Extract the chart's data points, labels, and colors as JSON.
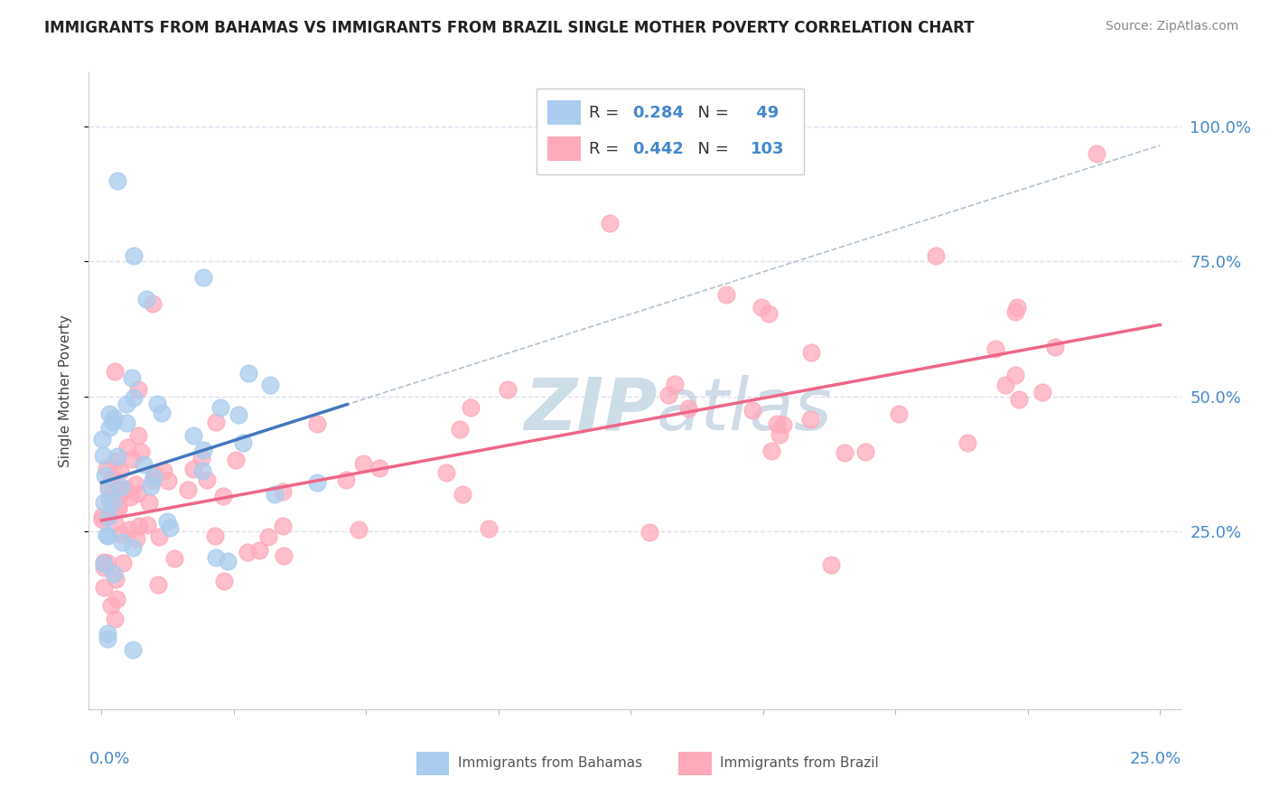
{
  "title": "IMMIGRANTS FROM BAHAMAS VS IMMIGRANTS FROM BRAZIL SINGLE MOTHER POVERTY CORRELATION CHART",
  "source": "Source: ZipAtlas.com",
  "legend_bahamas": "Immigrants from Bahamas",
  "legend_brazil": "Immigrants from Brazil",
  "R_bahamas": "0.284",
  "N_bahamas": "49",
  "R_brazil": "0.442",
  "N_brazil": "103",
  "color_bahamas": "#aaccee",
  "color_brazil": "#ffaabb",
  "line_color_bahamas": "#4477bb",
  "line_color_brazil": "#ee6688",
  "dash_color": "#aabbcc",
  "background_color": "#ffffff",
  "grid_color": "#ddddee",
  "text_color": "#4488cc",
  "title_color": "#222222",
  "ylabel": "Single Mother Poverty",
  "xlim": [
    0.0,
    0.25
  ],
  "ylim": [
    0.0,
    1.05
  ],
  "yticks": [
    0.25,
    0.5,
    0.75,
    1.0
  ],
  "ytick_labels": [
    "25.0%",
    "50.0%",
    "75.0%",
    "100.0%"
  ],
  "xtick_positions": [
    0.0,
    0.03125,
    0.0625,
    0.09375,
    0.125,
    0.15625,
    0.1875,
    0.21875,
    0.25
  ],
  "watermark_zip": "ZIP",
  "watermark_atlas": "atlas",
  "watermark_color": "#ccdde8"
}
